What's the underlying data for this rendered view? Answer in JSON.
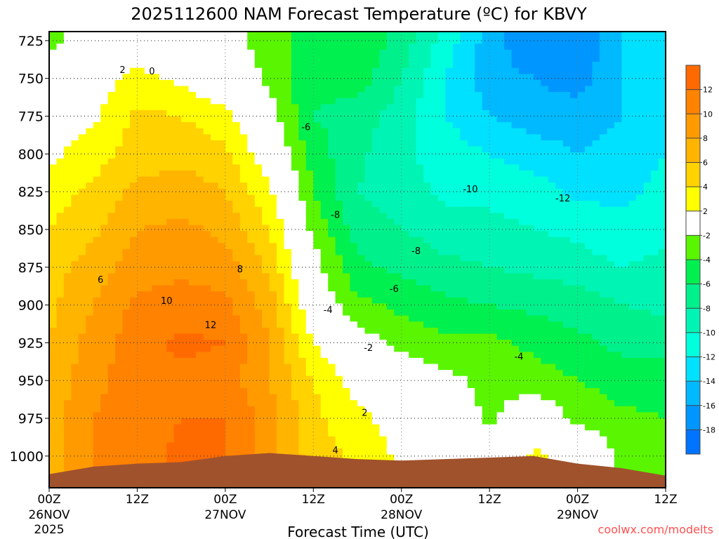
{
  "chart_data": {
    "type": "heatmap",
    "title": "2025112600 NAM Forecast Temperature (ºC) for KBVY",
    "xlabel": "Forecast Time (UTC)",
    "ylabel": "",
    "watermark": "coolwx.com/modelts",
    "xlim_hours": [
      0,
      84
    ],
    "ylim_hpa": [
      719,
      1021
    ],
    "x_ticks": [
      {
        "hour": 0,
        "label": "00Z",
        "sub": "26NOV",
        "sub2": "2025"
      },
      {
        "hour": 12,
        "label": "12Z"
      },
      {
        "hour": 24,
        "label": "00Z",
        "sub": "27NOV"
      },
      {
        "hour": 36,
        "label": "12Z"
      },
      {
        "hour": 48,
        "label": "00Z",
        "sub": "28NOV"
      },
      {
        "hour": 60,
        "label": "12Z"
      },
      {
        "hour": 72,
        "label": "00Z",
        "sub": "29NOV"
      },
      {
        "hour": 84,
        "label": "12Z"
      }
    ],
    "y_ticks": [
      725,
      750,
      775,
      800,
      825,
      850,
      875,
      900,
      925,
      950,
      975,
      1000
    ],
    "grid": true,
    "hours": [
      0,
      6,
      12,
      18,
      24,
      30,
      36,
      42,
      48,
      54,
      60,
      66,
      72,
      78,
      84
    ],
    "pressures": [
      725,
      750,
      775,
      800,
      825,
      850,
      875,
      900,
      925,
      950,
      975,
      1000
    ],
    "temperature_c": [
      [
        -3,
        0,
        1,
        1.5,
        3,
        4,
        5,
        5.5,
        6,
        6.5,
        7,
        7
      ],
      [
        0.5,
        1,
        1.5,
        3,
        4.5,
        5.5,
        7,
        8,
        9,
        9.5,
        10,
        10
      ],
      [
        1,
        2.5,
        4.5,
        5,
        6.5,
        8,
        9,
        10.5,
        11,
        11,
        11,
        11
      ],
      [
        0.5,
        1.5,
        4,
        5.5,
        7,
        8.5,
        9.5,
        11,
        12.5,
        11.5,
        12,
        12.5
      ],
      [
        -1,
        0,
        2.5,
        4.5,
        6,
        7.5,
        9,
        10.5,
        12,
        11,
        12,
        12
      ],
      [
        -3,
        -2.5,
        -1,
        0.5,
        2.5,
        4,
        5.5,
        7,
        8,
        8,
        9,
        9
      ],
      [
        -5,
        -5.5,
        -6,
        -5,
        -4,
        -2.5,
        -1,
        0,
        2,
        4,
        4.5,
        5
      ],
      [
        -4,
        -5,
        -7,
        -7.5,
        -8,
        -7,
        -5.5,
        -3.5,
        -1,
        1,
        2.5,
        3.5
      ],
      [
        -7,
        -8,
        -9,
        -9.5,
        -9,
        -8,
        -6.5,
        -4.5,
        -2.5,
        -0.5,
        1,
        1.5
      ],
      [
        -11,
        -12,
        -12,
        -11,
        -10.5,
        -9,
        -7.5,
        -5.5,
        -3.5,
        -1.5,
        0,
        1
      ],
      [
        -15,
        -15,
        -14,
        -12,
        -10.5,
        -9.5,
        -8,
        -6,
        -3.5,
        -2.5,
        -2.5,
        -0.5
      ],
      [
        -18,
        -16,
        -15,
        -13,
        -11,
        -10,
        -8.5,
        -6.5,
        -4.5,
        -3,
        0,
        2.5
      ],
      [
        -18,
        -17,
        -15,
        -14,
        -12.5,
        -10.5,
        -9,
        -7,
        -5.5,
        -4,
        -2.5,
        1
      ],
      [
        -14,
        -14,
        -14,
        -13,
        -12.5,
        -11.5,
        -10,
        -8,
        -6.5,
        -5,
        -3.5,
        -2.5
      ],
      [
        -13,
        -13.5,
        -13,
        -12,
        -11.5,
        -10.5,
        -9.5,
        -8.5,
        -6.5,
        -5,
        -4,
        -3
      ]
    ],
    "surface_pressure_hpa": [
      1012,
      1007,
      1005,
      1004,
      1000,
      998,
      1000,
      1002,
      1003,
      1002,
      1001,
      1000,
      1005,
      1008,
      1013
    ],
    "colorbar": {
      "levels": [
        -18,
        -16,
        -14,
        -12,
        -10,
        -8,
        -6,
        -4,
        -2,
        2,
        4,
        6,
        8,
        10,
        12
      ],
      "labels": [
        "-18",
        "-16",
        "-14",
        "-12",
        "-10",
        "-8",
        "-6",
        "-4",
        "-2",
        "2",
        "4",
        "6",
        "8",
        "10",
        "12"
      ],
      "colors": [
        "#0073ff",
        "#0096ff",
        "#00b9ff",
        "#00e1ff",
        "#00ffe6",
        "#00f5b4",
        "#00f08c",
        "#00f050",
        "#12ff3c",
        "#5aff00",
        "#ffffff",
        "#ffff00",
        "#ffd200",
        "#ffb400",
        "#ff9600",
        "#ff7d00",
        "#ff6400"
      ]
    },
    "terrain_color": "#a0522d",
    "contour_labels": [
      {
        "hour": 10,
        "hpa": 744,
        "text": "2"
      },
      {
        "hour": 14,
        "hpa": 745,
        "text": "0"
      },
      {
        "hour": 35,
        "hpa": 782,
        "text": "-6"
      },
      {
        "hour": 57.4,
        "hpa": 823,
        "text": "-10"
      },
      {
        "hour": 70,
        "hpa": 829,
        "text": "-12"
      },
      {
        "hour": 39,
        "hpa": 840,
        "text": "-8"
      },
      {
        "hour": 50,
        "hpa": 864,
        "text": "-8"
      },
      {
        "hour": 26,
        "hpa": 876,
        "text": "8"
      },
      {
        "hour": 7,
        "hpa": 883,
        "text": "6"
      },
      {
        "hour": 16,
        "hpa": 897,
        "text": "10"
      },
      {
        "hour": 47,
        "hpa": 889,
        "text": "-6"
      },
      {
        "hour": 38,
        "hpa": 903,
        "text": "-4"
      },
      {
        "hour": 22,
        "hpa": 913,
        "text": "12"
      },
      {
        "hour": 43.5,
        "hpa": 928,
        "text": "-2"
      },
      {
        "hour": 64,
        "hpa": 934,
        "text": "-4"
      },
      {
        "hour": 43,
        "hpa": 971,
        "text": "2"
      },
      {
        "hour": 39,
        "hpa": 996,
        "text": "4"
      }
    ]
  }
}
